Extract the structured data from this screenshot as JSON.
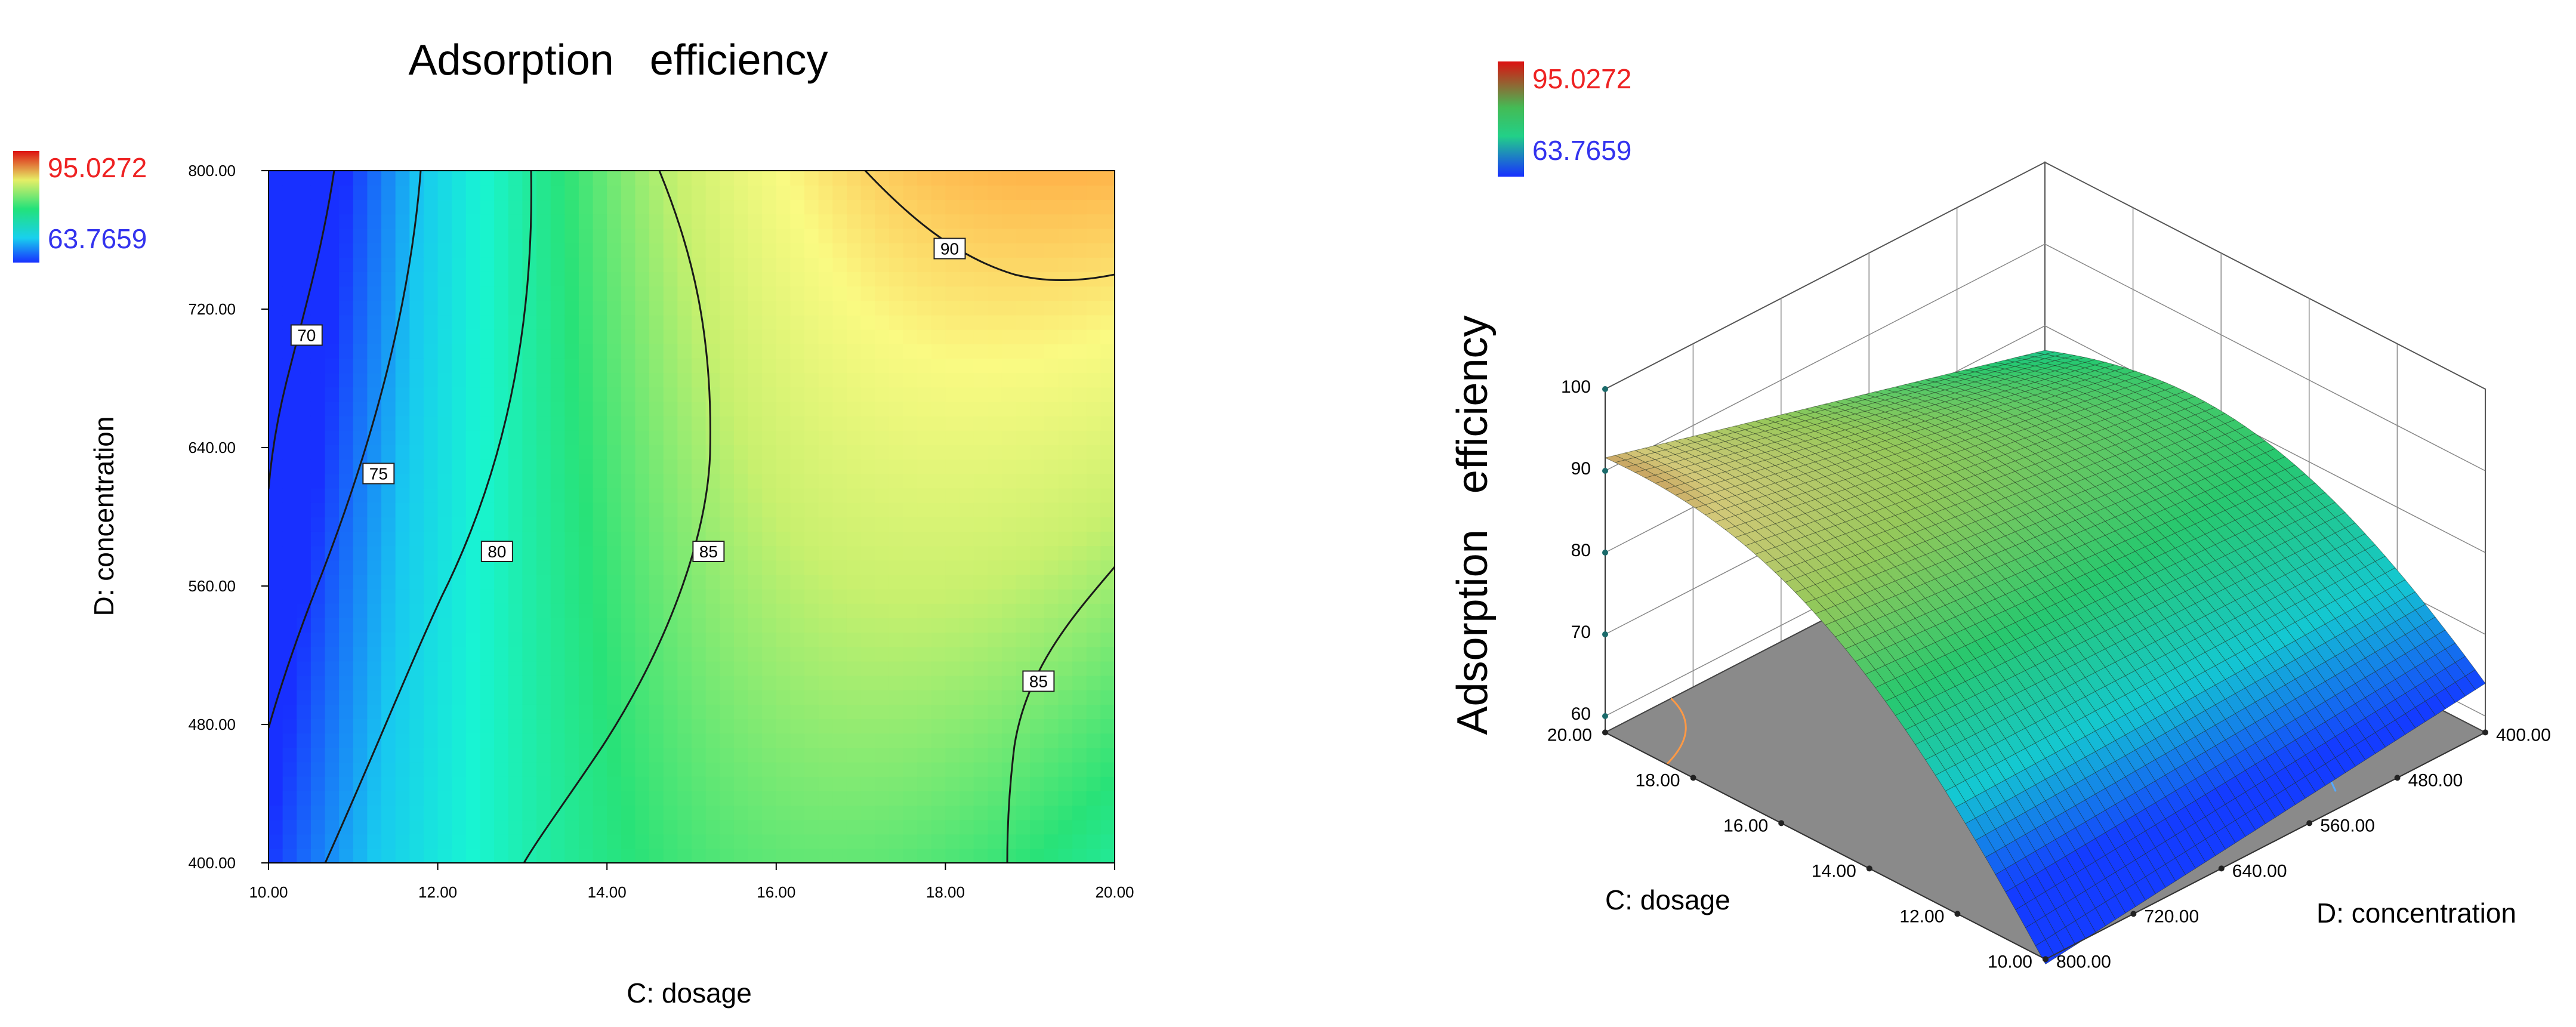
{
  "charts": [
    {
      "id": "contour",
      "chart_data": {
        "type": "heatmap",
        "title": "Adsorption   efficiency",
        "xlabel": "C: dosage",
        "ylabel": "D: concentration",
        "xlim": [
          10,
          20
        ],
        "ylim": [
          400,
          800
        ],
        "xticks": [
          "10.00",
          "12.00",
          "14.00",
          "16.00",
          "18.00",
          "20.00"
        ],
        "yticks": [
          "400.00",
          "480.00",
          "560.00",
          "640.00",
          "720.00",
          "800.00"
        ],
        "legend": {
          "max": "95.0272",
          "min": "63.7659",
          "position": "top-left"
        },
        "contour_labels": [
          {
            "text": "70",
            "x": 10.45,
            "y": 705
          },
          {
            "text": "75",
            "x": 11.3,
            "y": 625
          },
          {
            "text": "80",
            "x": 12.7,
            "y": 580
          },
          {
            "text": "85",
            "x": 15.2,
            "y": 580
          },
          {
            "text": "85",
            "x": 19.1,
            "y": 505
          },
          {
            "text": "90",
            "x": 18.05,
            "y": 755
          }
        ]
      }
    },
    {
      "id": "surface",
      "chart_data": {
        "type": "surface3d",
        "zlabel": "Adsorption   efficiency",
        "xlabel": "C: dosage",
        "ylabel": "D: concentration",
        "xlim": [
          10,
          20
        ],
        "ylim": [
          400,
          800
        ],
        "zlim": [
          60,
          100
        ],
        "xticks": [
          "10.00",
          "12.00",
          "14.00",
          "16.00",
          "18.00",
          "20.00"
        ],
        "yticks": [
          "800.00",
          "720.00",
          "640.00",
          "560.00",
          "480.00",
          "400.00"
        ],
        "zticks": [
          "60",
          "70",
          "80",
          "90",
          "100"
        ],
        "legend": {
          "max": "95.0272",
          "min": "63.7659",
          "position": "top-left"
        }
      }
    }
  ],
  "colors": {
    "low": "#1a2fff",
    "mid": "#22e27a",
    "high": "#ff3a14",
    "legend_max_text": "#ee2222",
    "legend_min_text": "#3333ee",
    "floor": "#8a8a8a"
  }
}
